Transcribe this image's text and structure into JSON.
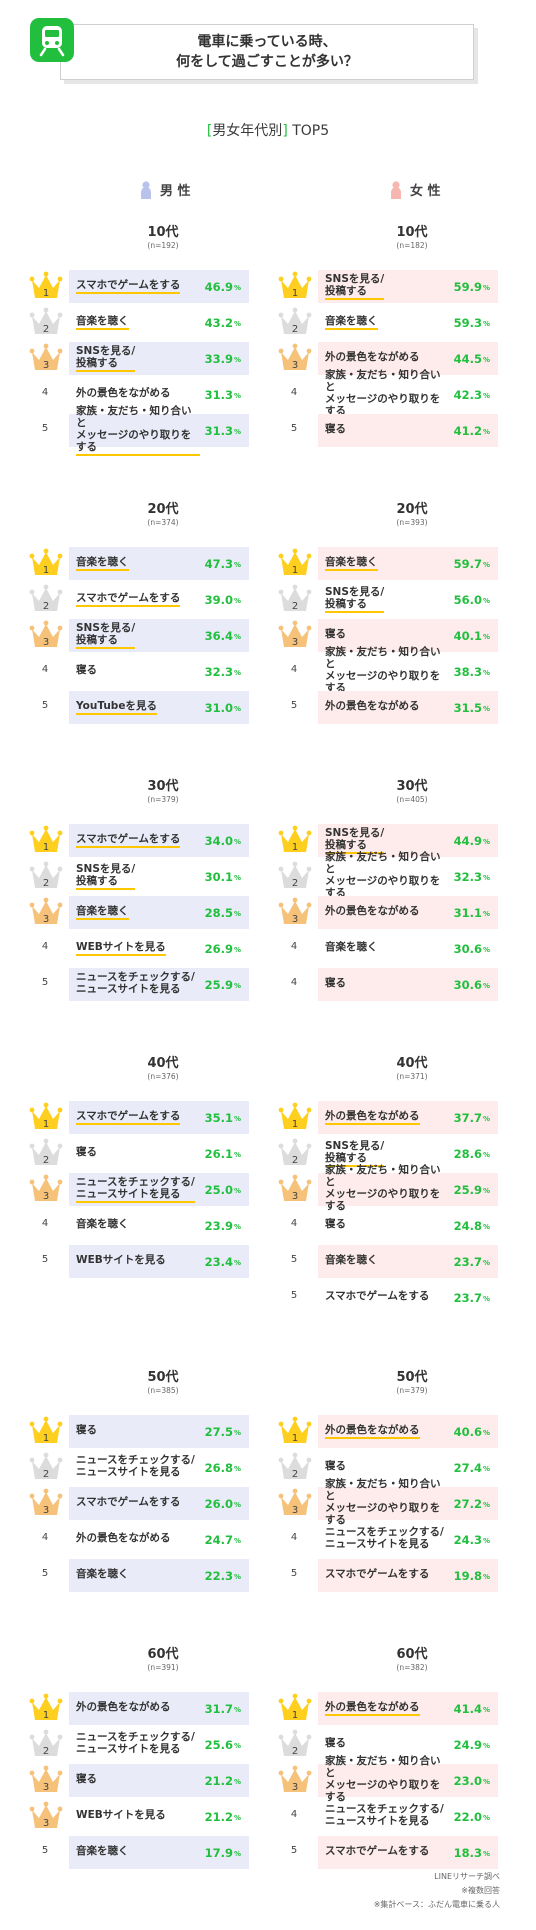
{
  "header": {
    "title_line1": "電車に乗っている時、",
    "title_line2": "何をして過ごすことが多い？"
  },
  "subtitle": {
    "bracket_open": "[",
    "text": "男女年代別",
    "bracket_close": "]",
    "tail": " TOP5"
  },
  "genders": {
    "male": "男 性",
    "female": "女 性"
  },
  "colors": {
    "male_cell": "#e9ebf8",
    "female_cell": "#fdeceb",
    "value_green": "#22bf3f",
    "highlight_underline": "#ffc700",
    "gold": "#ffcf1f",
    "silver": "#dcdcdc",
    "bronze": "#f6c27a"
  },
  "chart_data": {
    "type": "table",
    "unit": "%",
    "groups": [
      {
        "age": "10代",
        "male": {
          "n": "(n=192)",
          "items": [
            {
              "rank": 1,
              "label": "スマホでゲームをする",
              "value": 46.9,
              "shaded": true,
              "underline": true
            },
            {
              "rank": 2,
              "label": "音楽を聴く",
              "value": 43.2,
              "shaded": false,
              "underline": true
            },
            {
              "rank": 3,
              "label": "SNSを見る/\n投稿する",
              "value": 33.9,
              "shaded": true,
              "underline": true
            },
            {
              "rank": 4,
              "label": "外の景色をながめる",
              "value": 31.3,
              "shaded": false,
              "underline": false
            },
            {
              "rank": 5,
              "label": "家族・友だち・知り合いと\nメッセージのやり取りをする",
              "value": 31.3,
              "shaded": true,
              "underline": true
            }
          ]
        },
        "female": {
          "n": "(n=182)",
          "items": [
            {
              "rank": 1,
              "label": "SNSを見る/\n投稿する",
              "value": 59.9,
              "shaded": true,
              "underline": true
            },
            {
              "rank": 2,
              "label": "音楽を聴く",
              "value": 59.3,
              "shaded": false,
              "underline": true
            },
            {
              "rank": 3,
              "label": "外の景色をながめる",
              "value": 44.5,
              "shaded": true,
              "underline": false
            },
            {
              "rank": 4,
              "label": "家族・友だち・知り合いと\nメッセージのやり取りをする",
              "value": 42.3,
              "shaded": false,
              "underline": false
            },
            {
              "rank": 5,
              "label": "寝る",
              "value": 41.2,
              "shaded": true,
              "underline": false
            }
          ]
        }
      },
      {
        "age": "20代",
        "male": {
          "n": "(n=374)",
          "items": [
            {
              "rank": 1,
              "label": "音楽を聴く",
              "value": 47.3,
              "shaded": true,
              "underline": true
            },
            {
              "rank": 2,
              "label": "スマホでゲームをする",
              "value": 39.0,
              "shaded": false,
              "underline": true
            },
            {
              "rank": 3,
              "label": "SNSを見る/\n投稿する",
              "value": 36.4,
              "shaded": true,
              "underline": true
            },
            {
              "rank": 4,
              "label": "寝る",
              "value": 32.3,
              "shaded": false,
              "underline": false
            },
            {
              "rank": 5,
              "label": "YouTubeを見る",
              "value": 31.0,
              "shaded": true,
              "underline": true
            }
          ]
        },
        "female": {
          "n": "(n=393)",
          "items": [
            {
              "rank": 1,
              "label": "音楽を聴く",
              "value": 59.7,
              "shaded": true,
              "underline": true
            },
            {
              "rank": 2,
              "label": "SNSを見る/\n投稿する",
              "value": 56.0,
              "shaded": false,
              "underline": true
            },
            {
              "rank": 3,
              "label": "寝る",
              "value": 40.1,
              "shaded": true,
              "underline": false
            },
            {
              "rank": 4,
              "label": "家族・友だち・知り合いと\nメッセージのやり取りをする",
              "value": 38.3,
              "shaded": false,
              "underline": true
            },
            {
              "rank": 5,
              "label": "外の景色をながめる",
              "value": 31.5,
              "shaded": true,
              "underline": false
            }
          ]
        }
      },
      {
        "age": "30代",
        "male": {
          "n": "(n=379)",
          "items": [
            {
              "rank": 1,
              "label": "スマホでゲームをする",
              "value": 34.0,
              "shaded": true,
              "underline": true
            },
            {
              "rank": 2,
              "label": "SNSを見る/\n投稿する",
              "value": 30.1,
              "shaded": false,
              "underline": true
            },
            {
              "rank": 3,
              "label": "音楽を聴く",
              "value": 28.5,
              "shaded": true,
              "underline": true
            },
            {
              "rank": 4,
              "label": "WEBサイトを見る",
              "value": 26.9,
              "shaded": false,
              "underline": true
            },
            {
              "rank": 5,
              "label": "ニュースをチェックする/\nニュースサイトを見る",
              "value": 25.9,
              "shaded": true,
              "underline": false
            }
          ]
        },
        "female": {
          "n": "(n=405)",
          "items": [
            {
              "rank": 1,
              "label": "SNSを見る/\n投稿する",
              "value": 44.9,
              "shaded": true,
              "underline": true
            },
            {
              "rank": 2,
              "label": "家族・友だち・知り合いと\nメッセージのやり取りをする",
              "value": 32.3,
              "shaded": false,
              "underline": true
            },
            {
              "rank": 3,
              "label": "外の景色をながめる",
              "value": 31.1,
              "shaded": true,
              "underline": false
            },
            {
              "rank": 4,
              "label": "音楽を聴く",
              "value": 30.6,
              "shaded": false,
              "underline": false
            },
            {
              "rank": 4,
              "label": "寝る",
              "value": 30.6,
              "shaded": true,
              "underline": false
            }
          ]
        }
      },
      {
        "age": "40代",
        "male": {
          "n": "(n=376)",
          "items": [
            {
              "rank": 1,
              "label": "スマホでゲームをする",
              "value": 35.1,
              "shaded": true,
              "underline": true
            },
            {
              "rank": 2,
              "label": "寝る",
              "value": 26.1,
              "shaded": false,
              "underline": false
            },
            {
              "rank": 3,
              "label": "ニュースをチェックする/\nニュースサイトを見る",
              "value": 25.0,
              "shaded": true,
              "underline": true
            },
            {
              "rank": 4,
              "label": "音楽を聴く",
              "value": 23.9,
              "shaded": false,
              "underline": false
            },
            {
              "rank": 5,
              "label": "WEBサイトを見る",
              "value": 23.4,
              "shaded": true,
              "underline": false
            }
          ]
        },
        "female": {
          "n": "(n=371)",
          "items": [
            {
              "rank": 1,
              "label": "外の景色をながめる",
              "value": 37.7,
              "shaded": true,
              "underline": true
            },
            {
              "rank": 2,
              "label": "SNSを見る/\n投稿する",
              "value": 28.6,
              "shaded": false,
              "underline": true
            },
            {
              "rank": 3,
              "label": "家族・友だち・知り合いと\nメッセージのやり取りをする",
              "value": 25.9,
              "shaded": true,
              "underline": false
            },
            {
              "rank": 4,
              "label": "寝る",
              "value": 24.8,
              "shaded": false,
              "underline": false
            },
            {
              "rank": 5,
              "label": "音楽を聴く",
              "value": 23.7,
              "shaded": true,
              "underline": false
            },
            {
              "rank": 5,
              "label": "スマホでゲームをする",
              "value": 23.7,
              "shaded": false,
              "underline": false
            }
          ]
        }
      },
      {
        "age": "50代",
        "male": {
          "n": "(n=385)",
          "items": [
            {
              "rank": 1,
              "label": "寝る",
              "value": 27.5,
              "shaded": true,
              "underline": false
            },
            {
              "rank": 2,
              "label": "ニュースをチェックする/\nニュースサイトを見る",
              "value": 26.8,
              "shaded": false,
              "underline": false
            },
            {
              "rank": 3,
              "label": "スマホでゲームをする",
              "value": 26.0,
              "shaded": true,
              "underline": false
            },
            {
              "rank": 4,
              "label": "外の景色をながめる",
              "value": 24.7,
              "shaded": false,
              "underline": false
            },
            {
              "rank": 5,
              "label": "音楽を聴く",
              "value": 22.3,
              "shaded": true,
              "underline": false
            }
          ]
        },
        "female": {
          "n": "(n=379)",
          "items": [
            {
              "rank": 1,
              "label": "外の景色をながめる",
              "value": 40.6,
              "shaded": true,
              "underline": true
            },
            {
              "rank": 2,
              "label": "寝る",
              "value": 27.4,
              "shaded": false,
              "underline": false
            },
            {
              "rank": 3,
              "label": "家族・友だち・知り合いと\nメッセージのやり取りをする",
              "value": 27.2,
              "shaded": true,
              "underline": false
            },
            {
              "rank": 4,
              "label": "ニュースをチェックする/\nニュースサイトを見る",
              "value": 24.3,
              "shaded": false,
              "underline": false
            },
            {
              "rank": 5,
              "label": "スマホでゲームをする",
              "value": 19.8,
              "shaded": true,
              "underline": false
            }
          ]
        }
      },
      {
        "age": "60代",
        "male": {
          "n": "(n=391)",
          "items": [
            {
              "rank": 1,
              "label": "外の景色をながめる",
              "value": 31.7,
              "shaded": true,
              "underline": false
            },
            {
              "rank": 2,
              "label": "ニュースをチェックする/\nニュースサイトを見る",
              "value": 25.6,
              "shaded": false,
              "underline": false
            },
            {
              "rank": 3,
              "label": "寝る",
              "value": 21.2,
              "shaded": true,
              "underline": false
            },
            {
              "rank": 3,
              "label": "WEBサイトを見る",
              "value": 21.2,
              "shaded": false,
              "underline": false
            },
            {
              "rank": 5,
              "label": "音楽を聴く",
              "value": 17.9,
              "shaded": true,
              "underline": false
            }
          ]
        },
        "female": {
          "n": "(n=382)",
          "items": [
            {
              "rank": 1,
              "label": "外の景色をながめる",
              "value": 41.4,
              "shaded": true,
              "underline": true
            },
            {
              "rank": 2,
              "label": "寝る",
              "value": 24.9,
              "shaded": false,
              "underline": false
            },
            {
              "rank": 3,
              "label": "家族・友だち・知り合いと\nメッセージのやり取りをする",
              "value": 23.0,
              "shaded": true,
              "underline": false
            },
            {
              "rank": 4,
              "label": "ニュースをチェックする/\nニュースサイトを見る",
              "value": 22.0,
              "shaded": false,
              "underline": false
            },
            {
              "rank": 5,
              "label": "スマホでゲームをする",
              "value": 18.3,
              "shaded": true,
              "underline": false
            }
          ]
        }
      }
    ]
  },
  "notes": {
    "line1": "LINEリサーチ調べ",
    "line2": "※複数回答",
    "line3": "※集計ベース：ふだん電車に乗る人"
  }
}
